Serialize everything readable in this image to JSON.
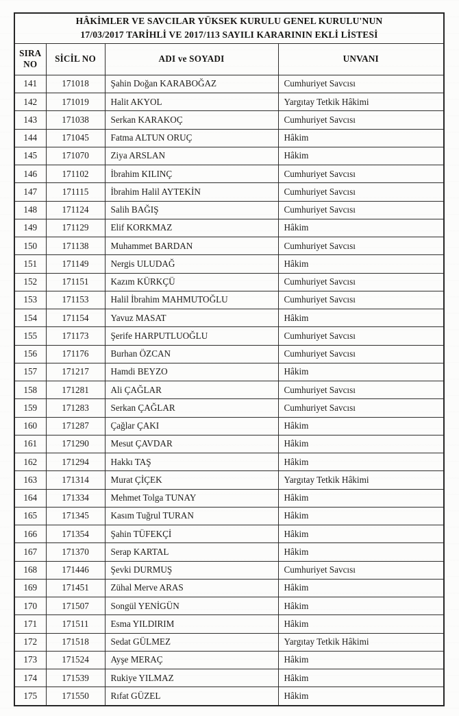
{
  "document": {
    "title_line1": "HÂKİMLER VE SAVCILAR YÜKSEK KURULU GENEL KURULU'NUN",
    "title_line2": "17/03/2017 TARİHLİ VE 2017/113 SAYILI KARARININ EKLİ LİSTESİ",
    "columns": {
      "sira": "SIRA NO",
      "sicil": "SİCİL NO",
      "name": "ADI ve SOYADI",
      "unvan": "UNVANI"
    },
    "rows": [
      {
        "sira": "141",
        "sicil": "171018",
        "name": "Şahin Doğan KARABOĞAZ",
        "unvan": "Cumhuriyet Savcısı"
      },
      {
        "sira": "142",
        "sicil": "171019",
        "name": "Halit AKYOL",
        "unvan": "Yargıtay Tetkik Hâkimi"
      },
      {
        "sira": "143",
        "sicil": "171038",
        "name": "Serkan KARAKOÇ",
        "unvan": "Cumhuriyet Savcısı"
      },
      {
        "sira": "144",
        "sicil": "171045",
        "name": "Fatma ALTUN ORUÇ",
        "unvan": "Hâkim"
      },
      {
        "sira": "145",
        "sicil": "171070",
        "name": "Ziya ARSLAN",
        "unvan": "Hâkim"
      },
      {
        "sira": "146",
        "sicil": "171102",
        "name": "İbrahim KILINÇ",
        "unvan": "Cumhuriyet Savcısı"
      },
      {
        "sira": "147",
        "sicil": "171115",
        "name": "İbrahim Halil AYTEKİN",
        "unvan": "Cumhuriyet Savcısı"
      },
      {
        "sira": "148",
        "sicil": "171124",
        "name": "Salih BAĞIŞ",
        "unvan": "Cumhuriyet Savcısı"
      },
      {
        "sira": "149",
        "sicil": "171129",
        "name": "Elif KORKMAZ",
        "unvan": "Hâkim"
      },
      {
        "sira": "150",
        "sicil": "171138",
        "name": "Muhammet BARDAN",
        "unvan": "Cumhuriyet Savcısı"
      },
      {
        "sira": "151",
        "sicil": "171149",
        "name": "Nergis ULUDAĞ",
        "unvan": "Hâkim"
      },
      {
        "sira": "152",
        "sicil": "171151",
        "name": "Kazım KÜRKÇÜ",
        "unvan": "Cumhuriyet Savcısı"
      },
      {
        "sira": "153",
        "sicil": "171153",
        "name": "Halil İbrahim MAHMUTOĞLU",
        "unvan": "Cumhuriyet Savcısı"
      },
      {
        "sira": "154",
        "sicil": "171154",
        "name": "Yavuz MASAT",
        "unvan": "Hâkim"
      },
      {
        "sira": "155",
        "sicil": "171173",
        "name": "Şerife HARPUTLUOĞLU",
        "unvan": "Cumhuriyet Savcısı"
      },
      {
        "sira": "156",
        "sicil": "171176",
        "name": "Burhan ÖZCAN",
        "unvan": "Cumhuriyet Savcısı"
      },
      {
        "sira": "157",
        "sicil": "171217",
        "name": "Hamdi BEYZO",
        "unvan": "Hâkim"
      },
      {
        "sira": "158",
        "sicil": "171281",
        "name": "Ali ÇAĞLAR",
        "unvan": "Cumhuriyet Savcısı"
      },
      {
        "sira": "159",
        "sicil": "171283",
        "name": "Serkan ÇAĞLAR",
        "unvan": "Cumhuriyet Savcısı"
      },
      {
        "sira": "160",
        "sicil": "171287",
        "name": "Çağlar ÇAKI",
        "unvan": "Hâkim"
      },
      {
        "sira": "161",
        "sicil": "171290",
        "name": "Mesut ÇAVDAR",
        "unvan": "Hâkim"
      },
      {
        "sira": "162",
        "sicil": "171294",
        "name": "Hakkı TAŞ",
        "unvan": "Hâkim"
      },
      {
        "sira": "163",
        "sicil": "171314",
        "name": "Murat ÇİÇEK",
        "unvan": "Yargıtay Tetkik Hâkimi"
      },
      {
        "sira": "164",
        "sicil": "171334",
        "name": "Mehmet Tolga TUNAY",
        "unvan": "Hâkim"
      },
      {
        "sira": "165",
        "sicil": "171345",
        "name": "Kasım Tuğrul TURAN",
        "unvan": "Hâkim"
      },
      {
        "sira": "166",
        "sicil": "171354",
        "name": "Şahin TÜFEKÇİ",
        "unvan": "Hâkim"
      },
      {
        "sira": "167",
        "sicil": "171370",
        "name": "Serap KARTAL",
        "unvan": "Hâkim"
      },
      {
        "sira": "168",
        "sicil": "171446",
        "name": "Şevki DURMUŞ",
        "unvan": "Cumhuriyet Savcısı"
      },
      {
        "sira": "169",
        "sicil": "171451",
        "name": "Zühal Merve ARAS",
        "unvan": "Hâkim"
      },
      {
        "sira": "170",
        "sicil": "171507",
        "name": "Songül YENİGÜN",
        "unvan": "Hâkim"
      },
      {
        "sira": "171",
        "sicil": "171511",
        "name": "Esma YILDIRIM",
        "unvan": "Hâkim"
      },
      {
        "sira": "172",
        "sicil": "171518",
        "name": "Sedat GÜLMEZ",
        "unvan": "Yargıtay Tetkik Hâkimi"
      },
      {
        "sira": "173",
        "sicil": "171524",
        "name": "Ayşe MERAÇ",
        "unvan": "Hâkim"
      },
      {
        "sira": "174",
        "sicil": "171539",
        "name": "Rukiye YILMAZ",
        "unvan": "Hâkim"
      },
      {
        "sira": "175",
        "sicil": "171550",
        "name": "Rıfat GÜZEL",
        "unvan": "Hâkim"
      }
    ]
  }
}
